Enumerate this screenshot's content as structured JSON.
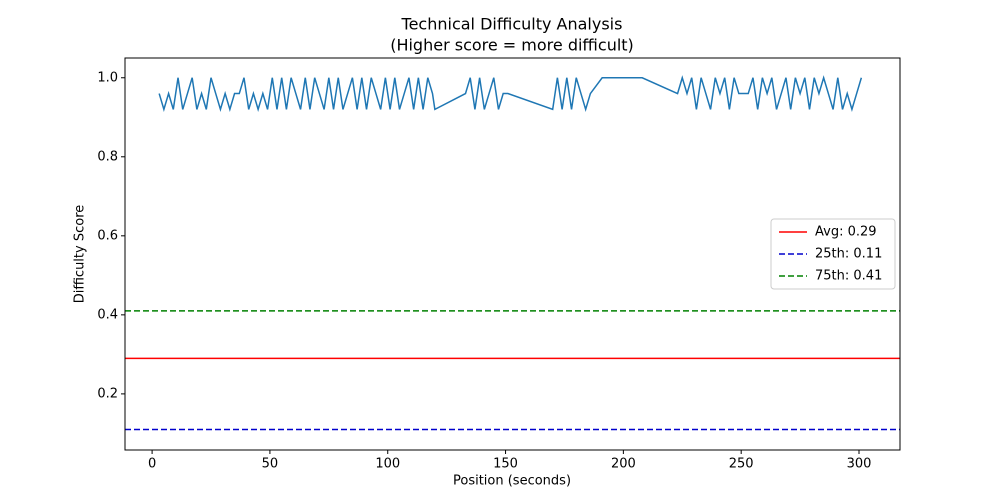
{
  "chart_data": {
    "type": "line",
    "title": "Technical Difficulty Analysis",
    "subtitle": "(Higher score = more difficult)",
    "x_label": "Position (seconds)",
    "y_label": "Difficulty Score",
    "xlim": [
      -11.5,
      317.4
    ],
    "ylim": [
      0.058,
      1.05
    ],
    "xticks": [
      0,
      50,
      100,
      150,
      200,
      250,
      300
    ],
    "yticks": [
      0.2,
      0.4,
      0.6,
      0.8,
      {
        "value": 1,
        "label": "1.0"
      }
    ],
    "grid": false,
    "legend_loc": "center right",
    "series": [
      {
        "color": "#1f77b4",
        "x": [
          3,
          5,
          7,
          9,
          11,
          13,
          15,
          17,
          19,
          21,
          23,
          25,
          27,
          29,
          31,
          33,
          35,
          37,
          39,
          41,
          43,
          45,
          47,
          49,
          51,
          53,
          55,
          57,
          59,
          61,
          63,
          65,
          67,
          69,
          71,
          73,
          75,
          77,
          79,
          81,
          83,
          85,
          87,
          89,
          91,
          93,
          95,
          97,
          99,
          101,
          103,
          105,
          107,
          109,
          111,
          113,
          115,
          117,
          119,
          120,
          133,
          135,
          137,
          139,
          141,
          143,
          145,
          147,
          149,
          151,
          170,
          172,
          174,
          176,
          178,
          180,
          182,
          184,
          186,
          191,
          208,
          223,
          225,
          227,
          229,
          231,
          233,
          235,
          237,
          239,
          241,
          243,
          245,
          247,
          249,
          251,
          253,
          255,
          257,
          259,
          261,
          263,
          265,
          267,
          269,
          271,
          273,
          275,
          277,
          279,
          281,
          283,
          285,
          287,
          289,
          291,
          293,
          295,
          297,
          299,
          301
        ],
        "values": [
          0.96,
          0.92,
          0.96,
          0.92,
          1,
          0.92,
          0.96,
          1,
          0.92,
          0.96,
          0.92,
          1,
          0.96,
          0.92,
          0.96,
          0.92,
          0.96,
          0.96,
          1,
          0.92,
          0.96,
          0.92,
          0.96,
          0.92,
          1,
          0.92,
          1,
          0.92,
          1,
          0.96,
          0.92,
          1,
          0.92,
          1,
          0.96,
          0.92,
          1,
          0.92,
          1,
          0.92,
          0.96,
          1,
          0.92,
          1,
          0.92,
          1,
          0.96,
          0.92,
          1,
          0.92,
          1,
          0.92,
          0.96,
          1,
          0.92,
          1,
          0.92,
          1,
          0.96,
          0.92,
          0.96,
          1,
          0.92,
          1,
          0.92,
          0.96,
          1,
          0.92,
          0.96,
          0.96,
          0.92,
          1,
          0.92,
          1,
          0.92,
          1,
          0.96,
          0.92,
          0.96,
          1,
          1,
          0.96,
          1,
          0.96,
          1,
          0.92,
          1,
          0.96,
          0.92,
          1,
          0.96,
          1,
          0.92,
          1,
          0.96,
          0.96,
          0.96,
          1,
          0.92,
          1,
          0.96,
          1,
          0.92,
          0.96,
          1,
          0.92,
          1,
          0.96,
          1,
          0.92,
          1,
          0.96,
          1,
          0.96,
          0.92,
          1,
          0.92,
          0.96,
          0.92,
          0.96,
          1
        ]
      }
    ],
    "hlines": [
      {
        "name": "Avg: 0.29",
        "value": 0.29,
        "color": "#ff0000",
        "dashed": false
      },
      {
        "name": "25th: 0.11",
        "value": 0.11,
        "color": "#0000cc",
        "dashed": true
      },
      {
        "name": "75th: 0.41",
        "value": 0.41,
        "color": "#008000",
        "dashed": true
      }
    ]
  }
}
